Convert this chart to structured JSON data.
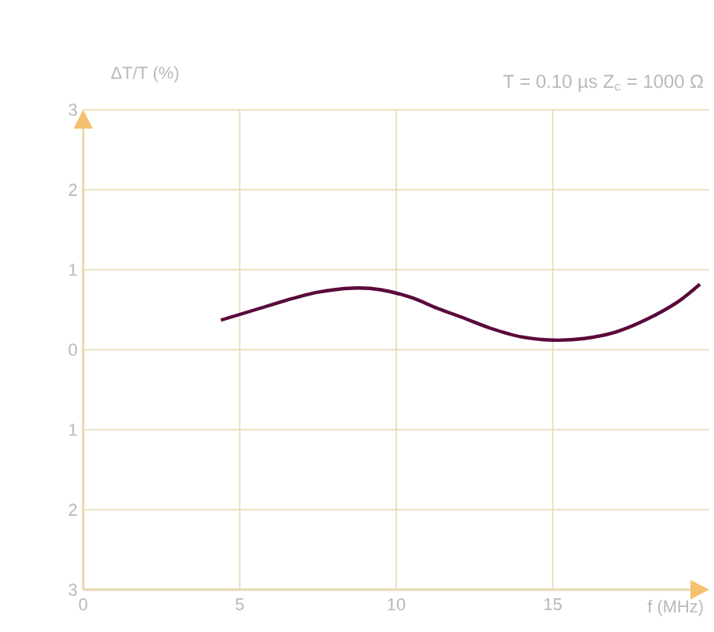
{
  "chart_data": {
    "type": "line",
    "subtitle": "T = 0.10 µs   Z$_{c}$ = 1000 Ω",
    "xlabel": "f (MHz)",
    "ylabel": "ΔT/T  (%)",
    "xlim": [
      0,
      20
    ],
    "xticks": [
      0,
      5,
      10,
      15
    ],
    "ylim": [
      -3,
      3
    ],
    "yticks": [
      {
        "value": -3,
        "label": "3"
      },
      {
        "value": -2,
        "label": "2"
      },
      {
        "value": -1,
        "label": "1"
      },
      0,
      1,
      2,
      3
    ],
    "grid": true,
    "marker": "none",
    "line_style": "solid",
    "series": [
      {
        "color": "#5a0a3a",
        "x": [
          4.4,
          5.5,
          6.5,
          7.5,
          8.6,
          9.5,
          10.5,
          11.3,
          12.2,
          13,
          14,
          15,
          16,
          17,
          18,
          19,
          19.7
        ],
        "values": [
          0.37,
          0.5,
          0.62,
          0.72,
          0.77,
          0.75,
          0.65,
          0.52,
          0.39,
          0.27,
          0.16,
          0.12,
          0.14,
          0.22,
          0.38,
          0.6,
          0.82
        ]
      }
    ]
  }
}
